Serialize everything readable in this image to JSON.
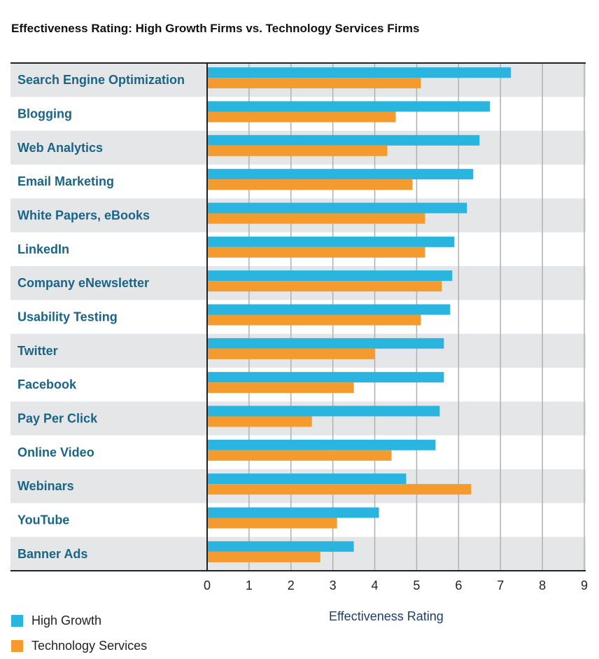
{
  "chart_data": {
    "type": "bar",
    "orientation": "horizontal",
    "title": "Effectiveness Rating: High Growth Firms vs. Technology Services Firms",
    "xlabel": "Effectiveness Rating",
    "ylabel": "",
    "xlim": [
      0,
      9
    ],
    "xticks": [
      "0",
      "1",
      "2",
      "3",
      "4",
      "5",
      "6",
      "7",
      "8",
      "9"
    ],
    "grid": true,
    "legend_position": "bottom-left",
    "categories": [
      "Search Engine Optimization",
      "Blogging",
      "Web Analytics",
      "Email Marketing",
      "White Papers, eBooks",
      "LinkedIn",
      "Company eNewsletter",
      "Usability Testing",
      "Twitter",
      "Facebook",
      "Pay Per Click",
      "Online Video",
      "Webinars",
      "YouTube",
      "Banner Ads"
    ],
    "series": [
      {
        "name": "High Growth",
        "color": "#29b5e0",
        "values": [
          7.25,
          6.75,
          6.5,
          6.35,
          6.2,
          5.9,
          5.85,
          5.8,
          5.65,
          5.65,
          5.55,
          5.45,
          4.75,
          4.1,
          3.5
        ]
      },
      {
        "name": "Technology Services",
        "color": "#f59a2c",
        "values": [
          5.1,
          4.5,
          4.3,
          4.9,
          5.2,
          5.2,
          5.6,
          5.1,
          4.0,
          3.5,
          2.5,
          4.4,
          6.3,
          3.1,
          2.7
        ]
      }
    ]
  },
  "colors": {
    "category_label": "#1a6585",
    "row_band": "#e5e6e8",
    "gridline": "#b0b0b0",
    "axis_title": "#1f3d68"
  }
}
